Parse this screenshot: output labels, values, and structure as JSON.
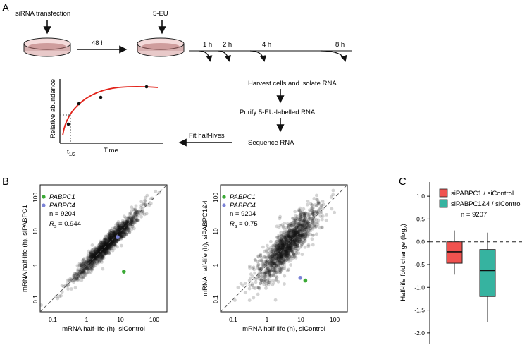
{
  "panel_a": {
    "letter": "A",
    "step_transfection": "siRNA transfection",
    "step_5eu": "5-EU",
    "interval_48h": "48 h",
    "timepoints": [
      "1 h",
      "2 h",
      "4 h",
      "8 h"
    ],
    "harvest": "Harvest cells and isolate RNA",
    "purify": "Purify 5-EU-labelled RNA",
    "sequence": "Sequence RNA",
    "fit": "Fit half-lives",
    "inset_ylabel": "Relative abundance",
    "inset_xlabel": "Time",
    "half_life_label": "t",
    "half_life_sub": "1/2"
  },
  "panel_b": {
    "letter": "B",
    "left": {
      "legend": [
        "PABPC1",
        "PABPC4"
      ],
      "n": "n = 9204",
      "rs_label": "R",
      "rs_sub": "s",
      "rs_value": " = 0.944",
      "xlabel": "mRNA half-life (h), siControl",
      "ylabel": "mRNA half-life (h), siPABPC1"
    },
    "right": {
      "legend": [
        "PABPC1",
        "PABPC4"
      ],
      "n": "n = 9204",
      "rs_label": "R",
      "rs_sub": "s",
      "rs_value": " = 0.75",
      "xlabel": "mRNA half-life (h), siControl",
      "ylabel": "mRNA half-life (h), siPABPC1&4"
    },
    "x_ticks": [
      "0.1",
      "1",
      "10",
      "100"
    ],
    "y_ticks": [
      "0.1",
      "1",
      "10",
      "100"
    ]
  },
  "panel_c": {
    "letter": "C",
    "legend": [
      "siPABPC1 / siControl",
      "siPABPC1&4 / siControl"
    ],
    "n": "n = 9207",
    "ylabel": "Half-life fold change (log",
    "ylabel_sub": "2",
    "ylabel_end": ")",
    "y_ticks": [
      "1.0",
      "0.5",
      "0.0",
      "-0.5",
      "-1.0",
      "-1.5",
      "-2.0"
    ]
  },
  "colors": {
    "pabpc1": "#3aa935",
    "pabpc4": "#7a82d6",
    "box1": "#f0524f",
    "box2": "#36b3a0",
    "fit_curve": "#e2231a"
  },
  "chart_data": [
    {
      "type": "scatter",
      "log_x": true,
      "log_y": true,
      "xlim": [
        0.08,
        200
      ],
      "ylim": [
        0.08,
        200
      ],
      "xlabel": "mRNA half-life (h), siControl",
      "ylabel": "mRNA half-life (h), siPABPC1",
      "highlight_points": [
        {
          "name": "PABPC1",
          "x": 14,
          "y": 0.95
        },
        {
          "name": "PABPC4",
          "x": 9.5,
          "y": 8
        }
      ],
      "cloud_center": [
        5,
        5
      ],
      "n": 9204,
      "spearman": 0.944
    },
    {
      "type": "scatter",
      "log_x": true,
      "log_y": true,
      "xlim": [
        0.08,
        200
      ],
      "ylim": [
        0.08,
        200
      ],
      "xlabel": "mRNA half-life (h), siControl",
      "ylabel": "mRNA half-life (h), siPABPC1&4",
      "highlight_points": [
        {
          "name": "PABPC1",
          "x": 15,
          "y": 0.55
        },
        {
          "name": "PABPC4",
          "x": 11,
          "y": 0.65
        }
      ],
      "cloud_center": [
        5,
        5
      ],
      "n": 9204,
      "spearman": 0.75
    },
    {
      "type": "box",
      "ylabel": "Half-life fold change (log2)",
      "ylim": [
        -2.25,
        1.25
      ],
      "boxes": [
        {
          "name": "siPABPC1 / siControl",
          "whisker_low": -0.72,
          "q1": -0.47,
          "median": -0.22,
          "q3": 0.0,
          "whisker_high": 0.25
        },
        {
          "name": "siPABPC1&4 / siControl",
          "whisker_low": -1.77,
          "q1": -1.2,
          "median": -0.63,
          "q3": -0.17,
          "whisker_high": 0.2
        }
      ],
      "reference_line": 0.0,
      "n": 9207
    }
  ]
}
